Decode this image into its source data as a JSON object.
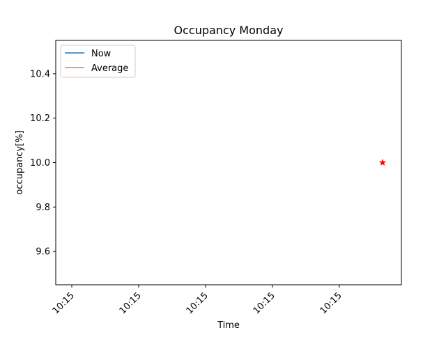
{
  "chart_data": {
    "type": "line",
    "title": "Occupancy Monday",
    "xlabel": "Time",
    "ylabel": "occupancy[%]",
    "ylim": [
      9.45,
      10.55
    ],
    "yticks": [
      9.6,
      9.8,
      10.0,
      10.2,
      10.4
    ],
    "xtick_labels": [
      "10:15",
      "10:15",
      "10:15",
      "10:15",
      "10:15"
    ],
    "legend": {
      "placement": "upper-left",
      "entries": [
        {
          "label": "Now",
          "color": "#1f77b4"
        },
        {
          "label": "Average",
          "color": "#ff7f0e"
        }
      ]
    },
    "series": [
      {
        "name": "Now",
        "color": "#1f77b4",
        "points": []
      },
      {
        "name": "Average",
        "color": "#ff7f0e",
        "points": []
      }
    ],
    "markers": [
      {
        "value": 10.0,
        "color": "#ff0000",
        "marker": "star"
      }
    ],
    "grid": false
  }
}
